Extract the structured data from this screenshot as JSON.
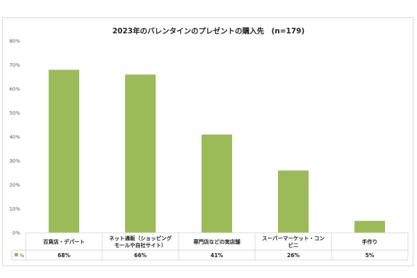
{
  "chart_data": {
    "type": "bar",
    "title": "2023年のバレンタインのプレゼントの購入先　(n=179)",
    "categories": [
      [
        "百貨店・デパート"
      ],
      [
        "ネット通販（ショッピング",
        "モールや自社サイト）"
      ],
      [
        "専門店などの実店舗"
      ],
      [
        "スーパーマーケット・コン",
        "ビニ"
      ],
      [
        "手作り"
      ]
    ],
    "series": [
      {
        "name": "%",
        "values": [
          68,
          66,
          41,
          26,
          5
        ],
        "labels": [
          "68%",
          "66%",
          "41%",
          "26%",
          "5%"
        ],
        "color": "#9bbb59"
      }
    ],
    "ylim": [
      0,
      80
    ],
    "yticks": [
      "0%",
      "10%",
      "20%",
      "30%",
      "40%",
      "50%",
      "60%",
      "70%",
      "80%"
    ],
    "xlabel": "",
    "ylabel": "",
    "legend": "data-table",
    "grid": false
  }
}
